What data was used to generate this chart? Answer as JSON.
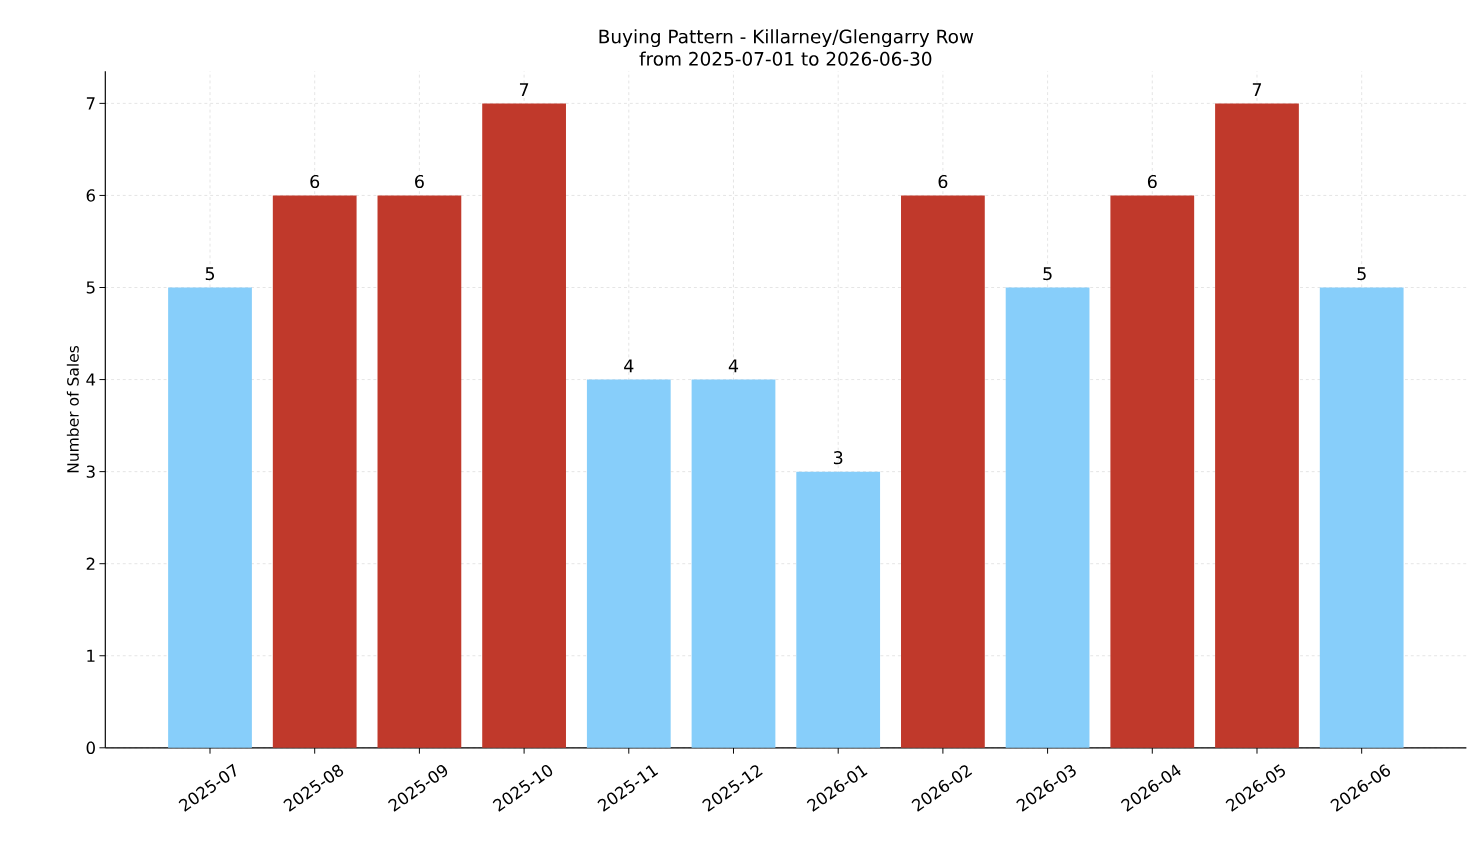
{
  "chart_data": {
    "type": "bar",
    "title": "Buying Pattern - Killarney/Glengarry Row",
    "subtitle": "from 2025-07-01 to 2026-06-30",
    "ylabel": "Number of Sales",
    "categories": [
      "2025-07",
      "2025-08",
      "2025-09",
      "2025-10",
      "2025-11",
      "2025-12",
      "2026-01",
      "2026-02",
      "2026-03",
      "2026-04",
      "2026-05",
      "2026-06"
    ],
    "values": [
      5,
      6,
      6,
      7,
      4,
      4,
      3,
      6,
      5,
      6,
      7,
      5
    ],
    "colors": [
      "#87cefa",
      "#c0392b",
      "#c0392b",
      "#c0392b",
      "#87cefa",
      "#87cefa",
      "#87cefa",
      "#c0392b",
      "#87cefa",
      "#c0392b",
      "#c0392b",
      "#87cefa"
    ],
    "ylim": [
      0,
      7.35
    ],
    "yticks": [
      0,
      1,
      2,
      3,
      4,
      5,
      6,
      7
    ],
    "grid": true,
    "data_labels": true
  }
}
